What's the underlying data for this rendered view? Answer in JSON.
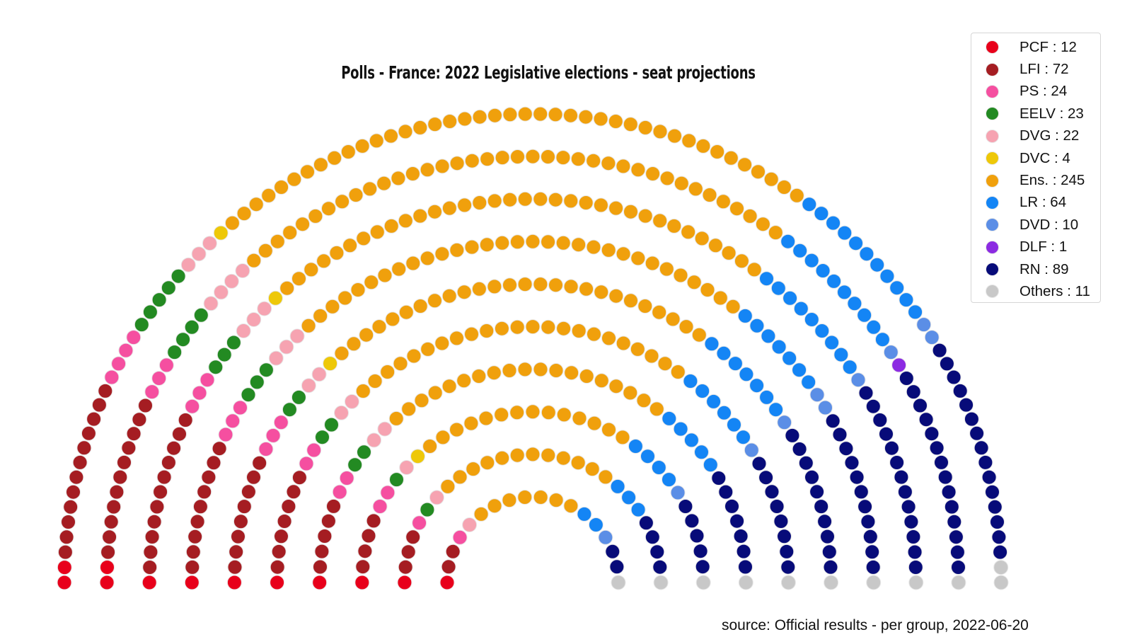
{
  "chart_data": {
    "type": "parliament",
    "title": "Polls - France: 2022 Legislative elections - seat projections",
    "total_seats": 577,
    "parties": [
      {
        "name": "PCF",
        "seats": 12,
        "color": "#e8001b",
        "label": "PCF : 12"
      },
      {
        "name": "LFI",
        "seats": 72,
        "color": "#a51d22",
        "label": "LFI : 72"
      },
      {
        "name": "PS",
        "seats": 24,
        "color": "#f54fa0",
        "label": "PS : 24"
      },
      {
        "name": "EELV",
        "seats": 23,
        "color": "#238a22",
        "label": "EELV : 23"
      },
      {
        "name": "DVG",
        "seats": 22,
        "color": "#f6a3b1",
        "label": "DVG : 22"
      },
      {
        "name": "DVC",
        "seats": 4,
        "color": "#eec808",
        "label": "DVC : 4"
      },
      {
        "name": "Ens.",
        "seats": 245,
        "color": "#f0a00c",
        "label": "Ens. : 245"
      },
      {
        "name": "LR",
        "seats": 64,
        "color": "#1485f5",
        "label": "LR : 64"
      },
      {
        "name": "DVD",
        "seats": 10,
        "color": "#5b8ee6",
        "label": "DVD : 10"
      },
      {
        "name": "DLF",
        "seats": 1,
        "color": "#8c2be2",
        "label": "DLF : 1"
      },
      {
        "name": "RN",
        "seats": 89,
        "color": "#070b79",
        "label": "RN : 89"
      },
      {
        "name": "Others",
        "seats": 11,
        "color": "#c8c8c8",
        "label": "Others : 11"
      }
    ],
    "legend_position": "top-right",
    "source": "source: Official results - per group, 2022-06-20"
  }
}
